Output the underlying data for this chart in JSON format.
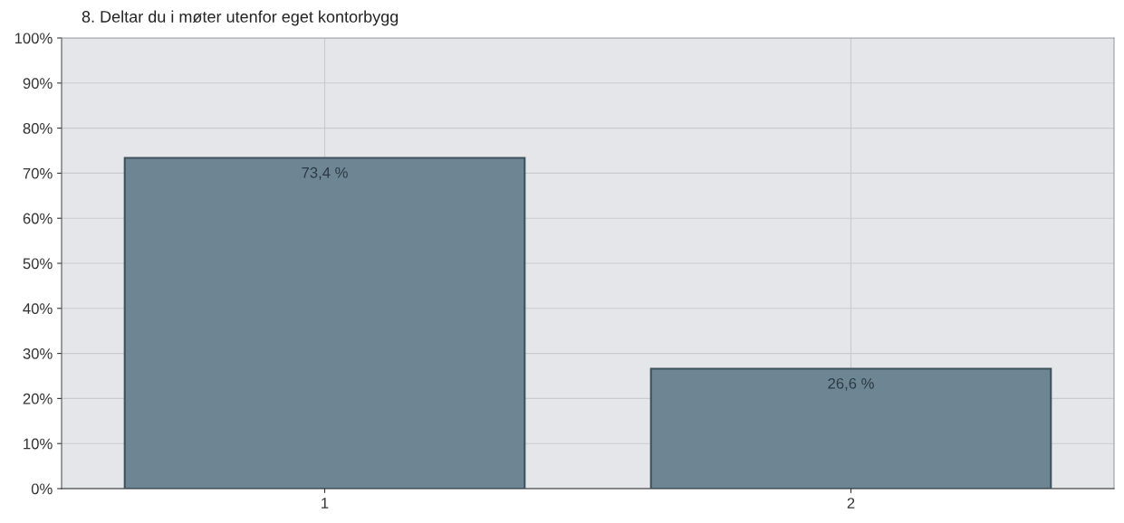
{
  "chart_data": {
    "type": "bar",
    "title": "8. Deltar du i møter utenfor eget kontorbygg",
    "categories": [
      "1",
      "2"
    ],
    "values": [
      73.4,
      26.6
    ],
    "value_labels": [
      "73,4 %",
      "26,6 %"
    ],
    "color": "#6e8593",
    "ylim": [
      0,
      100
    ],
    "yticks": [
      {
        "value": 0,
        "label": "0%"
      },
      {
        "value": 10,
        "label": "10%"
      },
      {
        "value": 20,
        "label": "20%"
      },
      {
        "value": 30,
        "label": "30%"
      },
      {
        "value": 40,
        "label": "40%"
      },
      {
        "value": 50,
        "label": "50%"
      },
      {
        "value": 60,
        "label": "60%"
      },
      {
        "value": 70,
        "label": "70%"
      },
      {
        "value": 80,
        "label": "80%"
      },
      {
        "value": 90,
        "label": "90%"
      },
      {
        "value": 100,
        "label": "100%"
      }
    ],
    "grid": true
  }
}
